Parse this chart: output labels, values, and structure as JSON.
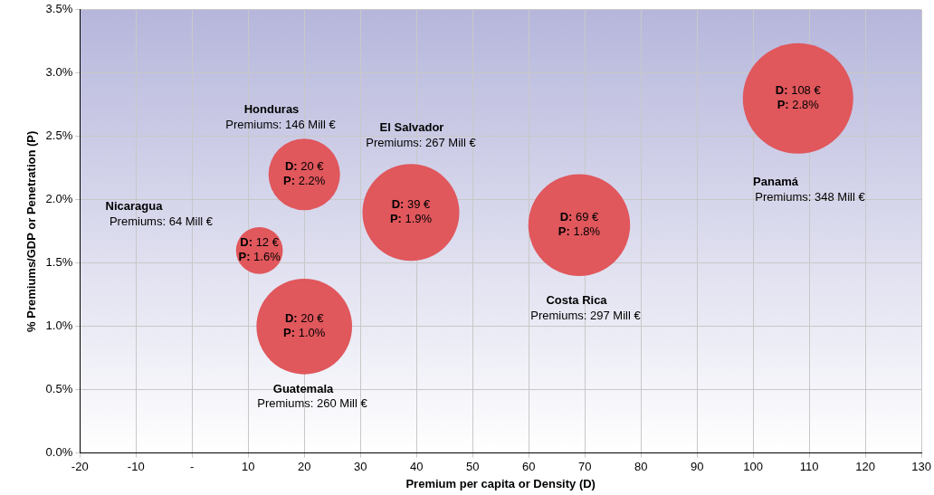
{
  "chart_data": {
    "type": "bubble",
    "xlabel": "Premium per capita or Density (D)",
    "ylabel": "% Premiums/GDP or Penetration (P)",
    "x": [
      12,
      20,
      39,
      20,
      69,
      108
    ],
    "values": [
      1.6,
      2.2,
      1.9,
      1.0,
      1.8,
      2.8
    ],
    "sizes": [
      0.18,
      0.42,
      0.77,
      0.75,
      0.85,
      1
    ],
    "color": "#e0575c",
    "value_labels": [
      "D: 12 €\nP: 1.6%",
      "D: 20 €\nP: 2.2%",
      "D: 39 €\nP: 1.9%",
      "D: 20 €\nP: 1.0%",
      "D: 69 €\nP: 1.8%",
      "D: 108 €\nP: 2.8%"
    ],
    "xlim": [
      -20,
      130
    ],
    "xticks": [
      -20,
      -10,
      {
        "value": 0,
        "label": "-"
      },
      10,
      20,
      30,
      40,
      50,
      60,
      70,
      80,
      90,
      100,
      110,
      120,
      130
    ],
    "ylim": [
      0,
      3.5
    ],
    "yticks": [
      {
        "value": 0,
        "label": "0.0%"
      },
      {
        "value": 0.5,
        "label": "0.5%"
      },
      {
        "value": 1,
        "label": "1.0%"
      },
      {
        "value": 1.5,
        "label": "1.5%"
      },
      {
        "value": 2,
        "label": "2.0%"
      },
      {
        "value": 2.5,
        "label": "2.5%"
      },
      {
        "value": 3,
        "label": "3.0%"
      },
      {
        "value": 3.5,
        "label": "3.5%"
      }
    ],
    "grid": true,
    "annotations": [
      "Nicaragua",
      "Premiums: 64 Mill €",
      "Honduras",
      "Premiums: 146 Mill €",
      "El Salvador",
      "Premiums: 267 Mill €",
      "Guatemala",
      "Premiums: 260 Mill €",
      "Costa Rica",
      "Premiums: 297 Mill €",
      "Panamá",
      "Premiums: 348 Mill €"
    ]
  }
}
